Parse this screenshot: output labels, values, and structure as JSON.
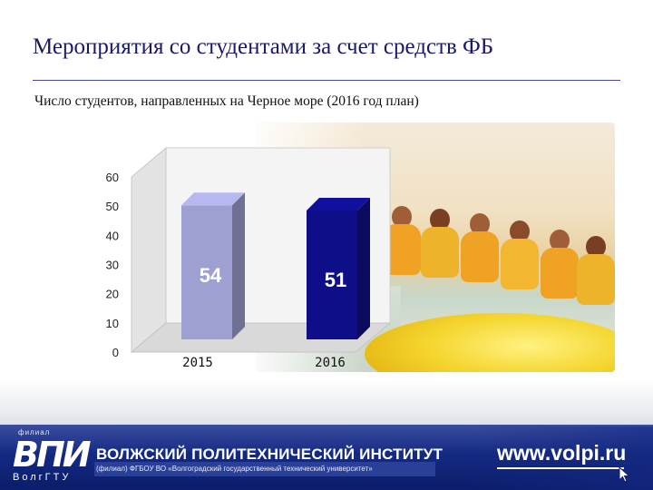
{
  "header": {
    "title": "Мероприятия со студентами за счет средств ФБ",
    "subtitle": "Число студентов, направленных на Черное море (2016 год план)"
  },
  "chart_data": {
    "type": "bar",
    "title": "",
    "xlabel": "",
    "ylabel": "",
    "categories": [
      "2015",
      "2016"
    ],
    "values": [
      54,
      51
    ],
    "data_labels": [
      "54",
      "51"
    ],
    "y_ticks": [
      "0",
      "10",
      "20",
      "30",
      "40",
      "50",
      "60"
    ],
    "ylim": [
      0,
      60
    ],
    "grid": false,
    "legend": "none",
    "style": "3d",
    "bar_colors": [
      "#9fa0d2",
      "#0e0e88"
    ]
  },
  "footer": {
    "logo_branch": "филиал",
    "logo_main": "ВПИ",
    "logo_sub": "ВолгГТУ",
    "institute": "ВОЛЖСКИЙ ПОЛИТЕХНИЧЕСКИЙ ИНСТИТУТ",
    "branch_text": "(филиал) ФГБОУ ВО «Волгоградский государственный технический университет»",
    "website": "www.volpi.ru"
  },
  "icons": {
    "cursor": "cursor-arrow-icon"
  }
}
